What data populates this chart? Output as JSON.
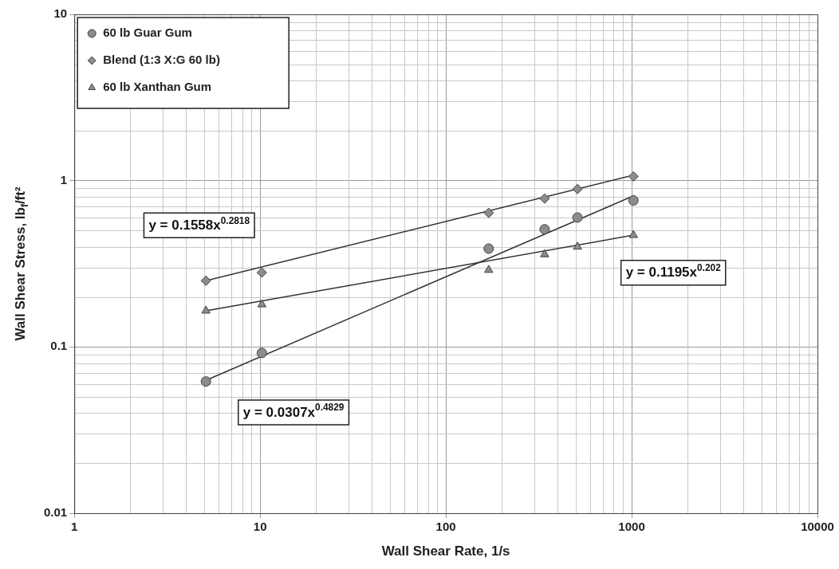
{
  "chart_data": {
    "type": "scatter",
    "xlabel": "Wall Shear Rate, 1/s",
    "ylabel": "Wall Shear Stress, lb$_{f}$/ft²",
    "log": "xy",
    "grid": true,
    "legend": "top left",
    "xlim": [
      1,
      10000
    ],
    "xticks": [
      1,
      10,
      100,
      1000,
      10000
    ],
    "ylim": [
      0.01,
      10
    ],
    "yticks": [
      0.01,
      0.1,
      1,
      10
    ],
    "series": [
      {
        "name": "60 lb Guar Gum",
        "color": "#8c8c8c",
        "marker": "circle",
        "x": [
          5.11,
          10.22,
          170,
          340,
          511,
          1022
        ],
        "values": [
          0.062,
          0.092,
          0.39,
          0.51,
          0.6,
          0.76
        ]
      },
      {
        "name": "Blend (1:3 X:G 60 lb)",
        "color": "#8c8c8c",
        "marker": "diamond",
        "x": [
          5.11,
          10.22,
          170,
          340,
          511,
          1022
        ],
        "values": [
          0.25,
          0.28,
          0.64,
          0.78,
          0.89,
          1.06
        ]
      },
      {
        "name": "60 lb Xanthan Gum",
        "color": "#8c8c8c",
        "marker": "triangle",
        "x": [
          5.11,
          10.22,
          170,
          340,
          511,
          1022
        ],
        "values": [
          0.165,
          0.18,
          0.29,
          0.36,
          0.4,
          0.47
        ]
      },
      {
        "type": "line",
        "color": "#333333",
        "marker": "none",
        "x": [
          5.11,
          1022
        ],
        "values": [
          0.063,
          0.81
        ]
      },
      {
        "type": "line",
        "color": "#333333",
        "marker": "none",
        "x": [
          5.11,
          1022
        ],
        "values": [
          0.25,
          1.08
        ]
      },
      {
        "type": "line",
        "color": "#333333",
        "marker": "none",
        "x": [
          5.11,
          1022
        ],
        "values": [
          0.165,
          0.47
        ]
      }
    ],
    "annotations": [
      "y = 0.1558x$^{0.2818}$",
      "y = 0.1195x$^{0.202}$",
      "y = 0.0307x$^{0.4829}$"
    ]
  }
}
